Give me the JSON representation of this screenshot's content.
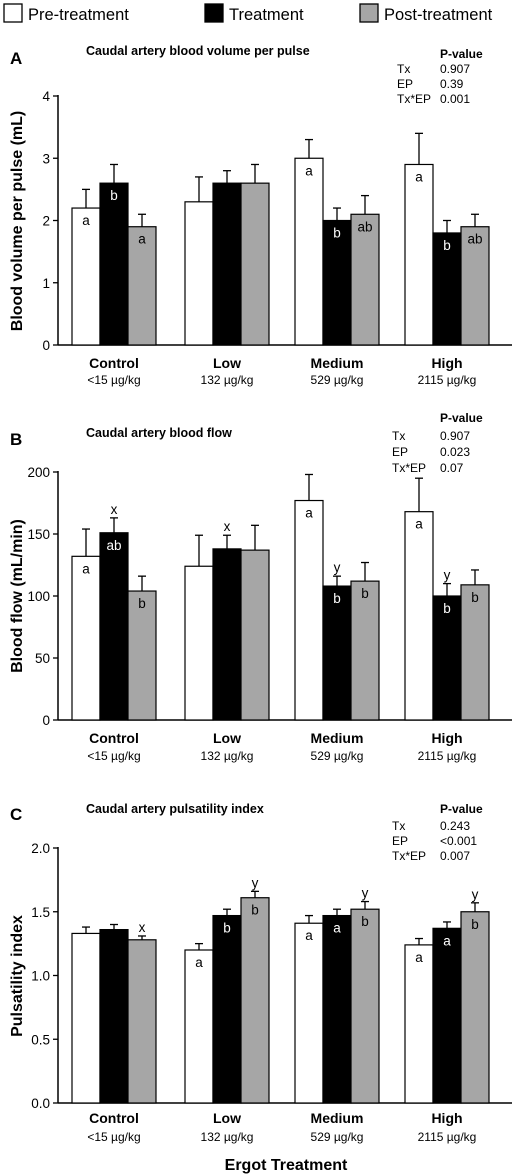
{
  "legend": [
    {
      "label": "Pre-treatment",
      "color": "#ffffff"
    },
    {
      "label": "Treatment",
      "color": "#000000"
    },
    {
      "label": "Post-treatment",
      "color": "#a6a6a6"
    }
  ],
  "x_axis_title": "Ergot Treatment",
  "chart_data": [
    {
      "type": "bar",
      "panel": "A",
      "title": "Caudal artery blood volume per pulse",
      "ylabel": "Blood volume per pulse (mL)",
      "ylim": [
        0,
        4
      ],
      "yticks": [
        "0",
        "1",
        "2",
        "3",
        "4"
      ],
      "categories": [
        "Control",
        "Low",
        "Medium",
        "High"
      ],
      "category_sublabels": [
        "<15 µg/kg",
        "132 µg/kg",
        "529 µg/kg",
        "2115 µg/kg"
      ],
      "series": [
        {
          "name": "Pre-treatment",
          "values": [
            2.2,
            2.3,
            3.0,
            2.9
          ],
          "errors": [
            0.3,
            0.4,
            0.3,
            0.5
          ],
          "labels": [
            "a",
            "",
            "a",
            "a"
          ],
          "above_labels": [
            "",
            "",
            "",
            ""
          ]
        },
        {
          "name": "Treatment",
          "values": [
            2.6,
            2.6,
            2.0,
            1.8
          ],
          "errors": [
            0.3,
            0.2,
            0.2,
            0.2
          ],
          "labels": [
            "b",
            "",
            "b",
            "b"
          ],
          "above_labels": [
            "",
            "",
            "",
            ""
          ]
        },
        {
          "name": "Post-treatment",
          "values": [
            1.9,
            2.6,
            2.1,
            1.9
          ],
          "errors": [
            0.2,
            0.3,
            0.3,
            0.2
          ],
          "labels": [
            "a",
            "",
            "ab",
            "ab"
          ],
          "above_labels": [
            "",
            "",
            "",
            ""
          ]
        }
      ],
      "stats": {
        "header": "P-value",
        "rows": [
          [
            "Tx",
            "0.907"
          ],
          [
            "EP",
            "0.39"
          ],
          [
            "Tx*EP",
            "0.001"
          ]
        ]
      }
    },
    {
      "type": "bar",
      "panel": "B",
      "title": "Caudal artery blood flow",
      "ylabel": "Blood flow (mL/min)",
      "ylim": [
        0,
        200
      ],
      "yticks": [
        "0",
        "50",
        "100",
        "150",
        "200"
      ],
      "categories": [
        "Control",
        "Low",
        "Medium",
        "High"
      ],
      "category_sublabels": [
        "<15 µg/kg",
        "132 µg/kg",
        "529 µg/kg",
        "2115 µg/kg"
      ],
      "series": [
        {
          "name": "Pre-treatment",
          "values": [
            132,
            124,
            177,
            168
          ],
          "errors": [
            22,
            25,
            21,
            27
          ],
          "labels": [
            "a",
            "",
            "a",
            "a"
          ],
          "above_labels": [
            "",
            "",
            "",
            ""
          ]
        },
        {
          "name": "Treatment",
          "values": [
            151,
            138,
            108,
            100
          ],
          "errors": [
            12,
            11,
            8,
            10
          ],
          "labels": [
            "ab",
            "",
            "b",
            "b"
          ],
          "above_labels": [
            "x",
            "x",
            "y",
            "y"
          ]
        },
        {
          "name": "Post-treatment",
          "values": [
            104,
            137,
            112,
            109
          ],
          "errors": [
            12,
            20,
            15,
            12
          ],
          "labels": [
            "b",
            "",
            "b",
            "b"
          ],
          "above_labels": [
            "",
            "",
            "",
            ""
          ]
        }
      ],
      "stats": {
        "header": "P-value",
        "rows": [
          [
            "Tx",
            "0.907"
          ],
          [
            "EP",
            "0.023"
          ],
          [
            "Tx*EP",
            "0.07"
          ]
        ]
      }
    },
    {
      "type": "bar",
      "panel": "C",
      "title": "Caudal artery pulsatility index",
      "ylabel": "Pulsatility index",
      "ylim": [
        0,
        2.0
      ],
      "yticks": [
        "0.0",
        "0.5",
        "1.0",
        "1.5",
        "2.0"
      ],
      "categories": [
        "Control",
        "Low",
        "Medium",
        "High"
      ],
      "category_sublabels": [
        "<15 µg/kg",
        "132 µg/kg",
        "529 µg/kg",
        "2115 µg/kg"
      ],
      "series": [
        {
          "name": "Pre-treatment",
          "values": [
            1.33,
            1.2,
            1.41,
            1.24
          ],
          "errors": [
            0.05,
            0.05,
            0.06,
            0.05
          ],
          "labels": [
            "",
            "a",
            "a",
            "a"
          ],
          "above_labels": [
            "",
            "",
            "",
            ""
          ]
        },
        {
          "name": "Treatment",
          "values": [
            1.36,
            1.47,
            1.47,
            1.37
          ],
          "errors": [
            0.04,
            0.05,
            0.05,
            0.05
          ],
          "labels": [
            "",
            "b",
            "a",
            "a"
          ],
          "above_labels": [
            "",
            "",
            "",
            ""
          ]
        },
        {
          "name": "Post-treatment",
          "values": [
            1.28,
            1.61,
            1.52,
            1.5
          ],
          "errors": [
            0.03,
            0.05,
            0.06,
            0.07
          ],
          "labels": [
            "",
            "b",
            "b",
            "b"
          ],
          "above_labels": [
            "x",
            "y",
            "y",
            "y"
          ]
        }
      ],
      "stats": {
        "header": "P-value",
        "rows": [
          [
            "Tx",
            "0.243"
          ],
          [
            "EP",
            "<0.001"
          ],
          [
            "Tx*EP",
            "0.007"
          ]
        ]
      }
    }
  ]
}
